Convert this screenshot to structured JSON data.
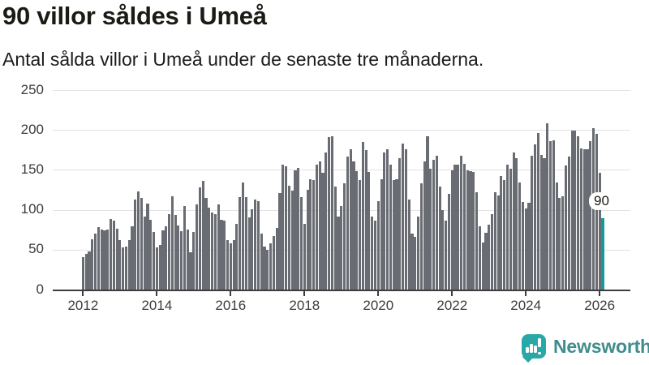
{
  "header": {
    "title": "90 villor såldes i Umeå",
    "subtitle": "Antal sålda villor i Umeå under de senaste tre månaderna."
  },
  "footer": {
    "brand": "Newsworthy"
  },
  "chart_data": {
    "type": "bar",
    "title": "90 villor såldes i Umeå",
    "subtitle": "Antal sålda villor i Umeå under de senaste tre månaderna.",
    "x_unit": "month",
    "start_month": "2012-01",
    "end_month": "2026-02",
    "ylim": [
      0,
      250
    ],
    "grid": "horizontal",
    "y_ticks": [
      0,
      50,
      100,
      150,
      200,
      250
    ],
    "x_ticks": [
      {
        "label": "2012",
        "month_index": 0
      },
      {
        "label": "2014",
        "month_index": 24
      },
      {
        "label": "2016",
        "month_index": 48
      },
      {
        "label": "2018",
        "month_index": 72
      },
      {
        "label": "2020",
        "month_index": 96
      },
      {
        "label": "2022",
        "month_index": 120
      },
      {
        "label": "2024",
        "month_index": 144
      },
      {
        "label": "2026",
        "month_index": 168
      }
    ],
    "series": [
      {
        "name": "Antal sålda villor",
        "values": [
          41,
          45,
          48,
          64,
          71,
          79,
          76,
          75,
          76,
          89,
          87,
          77,
          63,
          53,
          54,
          62,
          80,
          113,
          123,
          115,
          92,
          108,
          88,
          73,
          53,
          56,
          75,
          80,
          95,
          117,
          94,
          81,
          74,
          105,
          76,
          47,
          73,
          107,
          129,
          137,
          115,
          103,
          97,
          95,
          107,
          88,
          87,
          62,
          58,
          62,
          83,
          116,
          135,
          116,
          91,
          101,
          113,
          111,
          71,
          54,
          50,
          58,
          68,
          78,
          121,
          157,
          155,
          131,
          125,
          150,
          153,
          116,
          83,
          126,
          139,
          138,
          157,
          161,
          147,
          172,
          192,
          193,
          130,
          92,
          105,
          134,
          167,
          176,
          161,
          149,
          138,
          185,
          175,
          148,
          92,
          87,
          111,
          139,
          172,
          176,
          157,
          138,
          139,
          165,
          183,
          176,
          113,
          71,
          67,
          92,
          134,
          161,
          193,
          152,
          163,
          168,
          130,
          100,
          87,
          120,
          150,
          157,
          157,
          168,
          158,
          150,
          149,
          148,
          122,
          80,
          59,
          72,
          82,
          95,
          122,
          118,
          143,
          138,
          157,
          152,
          172,
          165,
          135,
          110,
          102,
          109,
          168,
          182,
          197,
          169,
          165,
          209,
          186,
          188,
          135,
          115,
          117,
          156,
          167,
          200,
          200,
          193,
          177,
          176,
          176,
          186,
          203,
          196,
          147,
          90
        ]
      }
    ],
    "highlight": {
      "index": 169,
      "value": 90,
      "label": "90"
    },
    "colors": {
      "bar": "#696c72",
      "highlight": "#149a9b",
      "gridline": "#e2e2e2",
      "axis": "#3d3d3d",
      "axis_text": "#3c3c3c"
    },
    "legend": "none"
  }
}
